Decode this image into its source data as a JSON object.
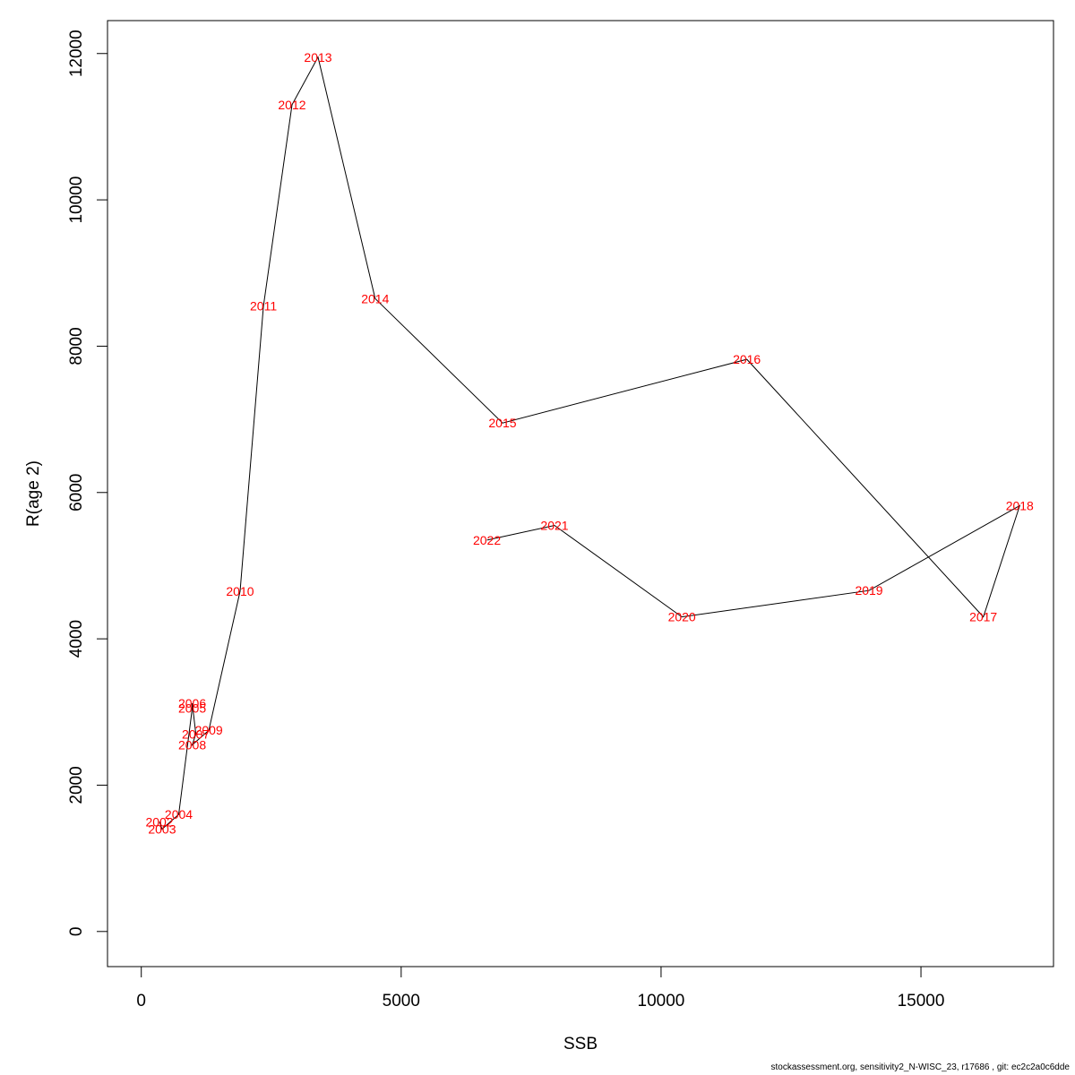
{
  "chart_data": {
    "type": "line",
    "xlabel": "SSB",
    "ylabel": "R(age 2)",
    "xlim": [
      -650,
      17550
    ],
    "ylim": [
      -480,
      12450
    ],
    "x_ticks": [
      0,
      5000,
      10000,
      15000
    ],
    "y_ticks": [
      0,
      2000,
      4000,
      6000,
      8000,
      10000,
      12000
    ],
    "grid": false,
    "legend": "none",
    "line_color": "#000000",
    "label_color": "#ff0000",
    "points": [
      {
        "label": "2002",
        "x": 350,
        "y": 1500
      },
      {
        "label": "2003",
        "x": 400,
        "y": 1400
      },
      {
        "label": "2004",
        "x": 720,
        "y": 1600
      },
      {
        "label": "2005",
        "x": 980,
        "y": 3050
      },
      {
        "label": "2006",
        "x": 980,
        "y": 3120
      },
      {
        "label": "2007",
        "x": 1050,
        "y": 2700
      },
      {
        "label": "2008",
        "x": 980,
        "y": 2550
      },
      {
        "label": "2009",
        "x": 1300,
        "y": 2750
      },
      {
        "label": "2010",
        "x": 1900,
        "y": 4650
      },
      {
        "label": "2011",
        "x": 2350,
        "y": 8550
      },
      {
        "label": "2012",
        "x": 2900,
        "y": 11300
      },
      {
        "label": "2013",
        "x": 3400,
        "y": 11950
      },
      {
        "label": "2014",
        "x": 4500,
        "y": 8650
      },
      {
        "label": "2015",
        "x": 6950,
        "y": 6950
      },
      {
        "label": "2016",
        "x": 11650,
        "y": 7820
      },
      {
        "label": "2017",
        "x": 16200,
        "y": 4300
      },
      {
        "label": "2018",
        "x": 16900,
        "y": 5820
      },
      {
        "label": "2019",
        "x": 14000,
        "y": 4660
      },
      {
        "label": "2020",
        "x": 10400,
        "y": 4300
      },
      {
        "label": "2021",
        "x": 7950,
        "y": 5550
      },
      {
        "label": "2022",
        "x": 6650,
        "y": 5350
      }
    ]
  },
  "footer": {
    "text": "stockassessment.org, sensitivity2_N-WISC_23, r17686 , git: ec2c2a0c6dde"
  }
}
